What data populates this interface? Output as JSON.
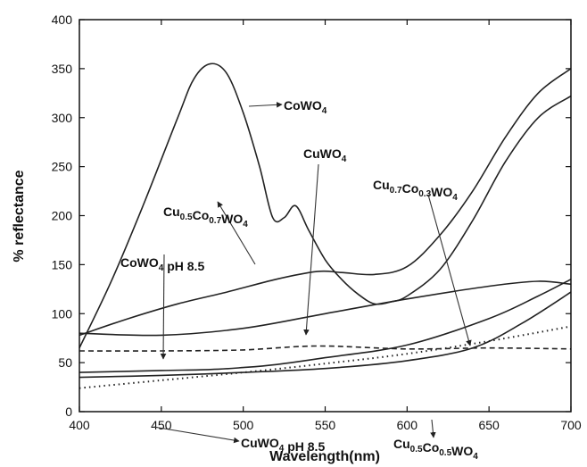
{
  "chart_data": {
    "type": "line",
    "xlabel": "Wavelength(nm)",
    "ylabel": "% reflectance",
    "xlim": [
      400,
      700
    ],
    "ylim": [
      0,
      400
    ],
    "xticks": [
      400,
      450,
      500,
      550,
      600,
      650,
      700
    ],
    "yticks": [
      0,
      50,
      100,
      150,
      200,
      250,
      300,
      350,
      400
    ],
    "grid": false,
    "legend": "none",
    "series": [
      {
        "name": "CoWO4",
        "style": "solid",
        "x": [
          400,
          420,
          440,
          460,
          470,
          480,
          490,
          500,
          510,
          518,
          525,
          532,
          540,
          550,
          560,
          570,
          580,
          590,
          600,
          620,
          640,
          660,
          680,
          700
        ],
        "y": [
          65,
          135,
          215,
          300,
          340,
          355,
          345,
          305,
          250,
          198,
          198,
          210,
          185,
          155,
          135,
          120,
          110,
          112,
          118,
          145,
          195,
          255,
          300,
          322
        ]
      },
      {
        "name": "CuWO4",
        "style": "solid",
        "x": [
          400,
          430,
          460,
          490,
          520,
          545,
          560,
          580,
          600,
          620,
          640,
          660,
          680,
          700
        ],
        "y": [
          78,
          95,
          110,
          122,
          135,
          143,
          142,
          140,
          148,
          180,
          225,
          280,
          325,
          350
        ]
      },
      {
        "name": "Cu0.7Co0.3WO4",
        "style": "solid",
        "x": [
          400,
          450,
          480,
          500,
          520,
          550,
          600,
          650,
          680,
          700
        ],
        "y": [
          40,
          42,
          43,
          45,
          48,
          55,
          68,
          95,
          118,
          135
        ]
      },
      {
        "name": "Cu0.5Co0.7WO4",
        "style": "solid",
        "x": [
          400,
          450,
          500,
          550,
          600,
          650,
          680,
          700
        ],
        "y": [
          80,
          78,
          85,
          100,
          115,
          128,
          133,
          130
        ]
      },
      {
        "name": "CoWO4 pH 8.5",
        "style": "dashed",
        "x": [
          400,
          450,
          500,
          545,
          600,
          650,
          700
        ],
        "y": [
          62,
          62,
          63,
          67,
          64,
          65,
          64
        ]
      },
      {
        "name": "CuWO4 pH 8.5",
        "style": "dotted",
        "x": [
          400,
          450,
          500,
          550,
          600,
          650,
          700
        ],
        "y": [
          24,
          32,
          40,
          49,
          59,
          72,
          87
        ]
      },
      {
        "name": "Cu0.5Co0.5WO4",
        "style": "solid",
        "x": [
          400,
          450,
          500,
          550,
          600,
          640,
          670,
          700
        ],
        "y": [
          35,
          37,
          40,
          44,
          52,
          65,
          90,
          122
        ]
      }
    ],
    "annotations": [
      {
        "base": "CoWO",
        "sub1": "4",
        "rest": ""
      },
      {
        "base": "CuWO",
        "sub1": "4",
        "rest": ""
      },
      {
        "base": "Cu",
        "sub1": "0.7",
        "mid": "Co",
        "sub2": "0.3",
        "tail": "WO",
        "sub3": "4"
      },
      {
        "base": "Cu",
        "sub1": "0.5",
        "mid": "Co",
        "sub2": "0.7",
        "tail": "WO",
        "sub3": "4"
      },
      {
        "base": "CoWO",
        "sub1": "4",
        "rest": " pH 8.5"
      },
      {
        "base": "CuWO",
        "sub1": "4",
        "rest": " pH 8.5"
      },
      {
        "base": "Cu",
        "sub1": "0.5",
        "mid": "Co",
        "sub2": "0.5",
        "tail": "WO",
        "sub3": "4"
      }
    ]
  }
}
